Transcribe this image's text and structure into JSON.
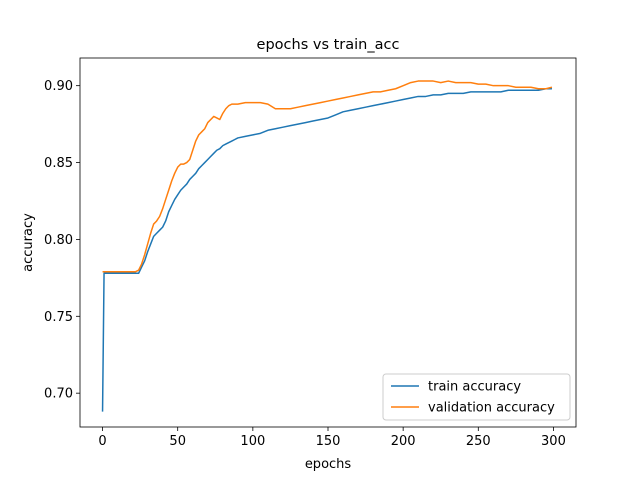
{
  "chart_data": {
    "type": "line",
    "title": "epochs vs train_acc",
    "xlabel": "epochs",
    "ylabel": "accuracy",
    "xlim": [
      -15,
      315
    ],
    "ylim": [
      0.678,
      0.918
    ],
    "xticks": [
      0,
      50,
      100,
      150,
      200,
      250,
      300
    ],
    "xtick_labels": [
      "0",
      "50",
      "100",
      "150",
      "200",
      "250",
      "300"
    ],
    "yticks": [
      0.7,
      0.75,
      0.8,
      0.85,
      0.9
    ],
    "ytick_labels": [
      "0.70",
      "0.75",
      "0.80",
      "0.85",
      "0.90"
    ],
    "grid": false,
    "legend_position": "lower-right",
    "series": [
      {
        "name": "train accuracy",
        "color": "#1f77b4",
        "x": [
          0,
          1,
          2,
          5,
          10,
          15,
          20,
          22,
          24,
          26,
          28,
          30,
          32,
          34,
          36,
          38,
          40,
          42,
          44,
          46,
          48,
          50,
          52,
          54,
          56,
          58,
          60,
          62,
          64,
          66,
          68,
          70,
          72,
          74,
          76,
          78,
          80,
          82,
          84,
          86,
          88,
          90,
          95,
          100,
          105,
          110,
          115,
          120,
          125,
          130,
          135,
          140,
          145,
          150,
          155,
          160,
          165,
          170,
          175,
          180,
          185,
          190,
          195,
          200,
          205,
          210,
          215,
          220,
          225,
          230,
          235,
          240,
          245,
          250,
          255,
          260,
          265,
          270,
          275,
          280,
          285,
          290,
          295,
          299
        ],
        "y": [
          0.688,
          0.778,
          0.778,
          0.778,
          0.778,
          0.778,
          0.778,
          0.778,
          0.778,
          0.782,
          0.786,
          0.792,
          0.797,
          0.802,
          0.804,
          0.806,
          0.808,
          0.812,
          0.818,
          0.822,
          0.826,
          0.829,
          0.832,
          0.834,
          0.836,
          0.839,
          0.841,
          0.843,
          0.846,
          0.848,
          0.85,
          0.852,
          0.854,
          0.856,
          0.858,
          0.859,
          0.861,
          0.862,
          0.863,
          0.864,
          0.865,
          0.866,
          0.867,
          0.868,
          0.869,
          0.871,
          0.872,
          0.873,
          0.874,
          0.875,
          0.876,
          0.877,
          0.878,
          0.879,
          0.881,
          0.883,
          0.884,
          0.885,
          0.886,
          0.887,
          0.888,
          0.889,
          0.89,
          0.891,
          0.892,
          0.893,
          0.893,
          0.894,
          0.894,
          0.895,
          0.895,
          0.895,
          0.896,
          0.896,
          0.896,
          0.896,
          0.896,
          0.897,
          0.897,
          0.897,
          0.897,
          0.897,
          0.898,
          0.898
        ]
      },
      {
        "name": "validation accuracy",
        "color": "#ff7f0e",
        "x": [
          0,
          2,
          5,
          10,
          15,
          20,
          22,
          24,
          26,
          28,
          30,
          32,
          34,
          36,
          38,
          40,
          42,
          44,
          46,
          48,
          50,
          52,
          54,
          56,
          58,
          60,
          62,
          64,
          66,
          68,
          70,
          72,
          74,
          76,
          78,
          80,
          82,
          84,
          86,
          88,
          90,
          95,
          100,
          105,
          110,
          115,
          120,
          125,
          130,
          135,
          140,
          145,
          150,
          155,
          160,
          165,
          170,
          175,
          180,
          185,
          190,
          195,
          200,
          205,
          210,
          215,
          220,
          225,
          230,
          235,
          240,
          245,
          250,
          255,
          260,
          265,
          270,
          275,
          280,
          285,
          290,
          295,
          299
        ],
        "y": [
          0.779,
          0.779,
          0.779,
          0.779,
          0.779,
          0.779,
          0.779,
          0.78,
          0.784,
          0.79,
          0.797,
          0.804,
          0.81,
          0.812,
          0.815,
          0.82,
          0.826,
          0.832,
          0.838,
          0.843,
          0.847,
          0.849,
          0.849,
          0.85,
          0.852,
          0.858,
          0.864,
          0.868,
          0.87,
          0.872,
          0.876,
          0.878,
          0.88,
          0.879,
          0.878,
          0.882,
          0.885,
          0.887,
          0.888,
          0.888,
          0.888,
          0.889,
          0.889,
          0.889,
          0.888,
          0.885,
          0.885,
          0.885,
          0.886,
          0.887,
          0.888,
          0.889,
          0.89,
          0.891,
          0.892,
          0.893,
          0.894,
          0.895,
          0.896,
          0.896,
          0.897,
          0.898,
          0.9,
          0.902,
          0.903,
          0.903,
          0.903,
          0.902,
          0.903,
          0.902,
          0.902,
          0.902,
          0.901,
          0.901,
          0.9,
          0.9,
          0.9,
          0.899,
          0.899,
          0.899,
          0.898,
          0.898,
          0.899
        ]
      }
    ]
  }
}
